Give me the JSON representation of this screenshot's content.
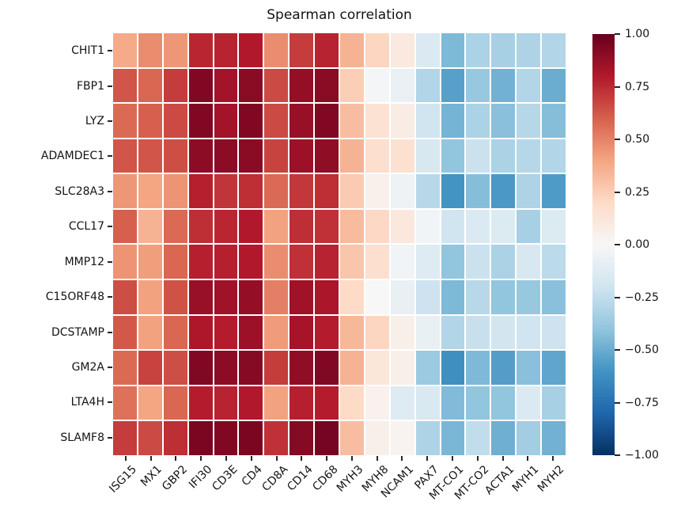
{
  "chart_data": {
    "type": "heatmap",
    "title": "Spearman correlation",
    "rows": [
      "CHIT1",
      "FBP1",
      "LYZ",
      "ADAMDEC1",
      "SLC28A3",
      "CCL17",
      "MMP12",
      "C15ORF48",
      "DCSTAMP",
      "GM2A",
      "LTA4H",
      "SLAMF8"
    ],
    "columns": [
      "ISG15",
      "MX1",
      "GBP2",
      "IFI30",
      "CD3E",
      "CD4",
      "CD8A",
      "CD14",
      "CD68",
      "MYH3",
      "MYH8",
      "NCAM1",
      "PAX7",
      "MT-CO1",
      "MT-CO2",
      "ACTA1",
      "MYH1",
      "MYH2"
    ],
    "values": [
      [
        0.38,
        0.47,
        0.44,
        0.76,
        0.77,
        0.8,
        0.47,
        0.7,
        0.77,
        0.35,
        0.22,
        0.1,
        -0.15,
        -0.45,
        -0.32,
        -0.33,
        -0.31,
        -0.3
      ],
      [
        0.63,
        0.58,
        0.7,
        0.93,
        0.84,
        0.91,
        0.66,
        0.88,
        0.91,
        0.25,
        -0.02,
        -0.07,
        -0.3,
        -0.55,
        -0.38,
        -0.48,
        -0.3,
        -0.5
      ],
      [
        0.57,
        0.6,
        0.66,
        0.93,
        0.84,
        0.93,
        0.66,
        0.87,
        0.93,
        0.31,
        0.15,
        0.08,
        -0.2,
        -0.47,
        -0.32,
        -0.42,
        -0.29,
        -0.43
      ],
      [
        0.63,
        0.63,
        0.65,
        0.9,
        0.9,
        0.91,
        0.68,
        0.86,
        0.89,
        0.35,
        0.17,
        0.16,
        -0.17,
        -0.4,
        -0.22,
        -0.32,
        -0.29,
        -0.3
      ],
      [
        0.44,
        0.4,
        0.45,
        0.78,
        0.72,
        0.74,
        0.57,
        0.71,
        0.74,
        0.26,
        0.05,
        -0.06,
        -0.28,
        -0.6,
        -0.43,
        -0.58,
        -0.31,
        -0.57
      ],
      [
        0.6,
        0.35,
        0.57,
        0.74,
        0.76,
        0.8,
        0.41,
        0.74,
        0.73,
        0.32,
        0.21,
        0.11,
        -0.03,
        -0.2,
        -0.15,
        -0.14,
        -0.33,
        -0.14
      ],
      [
        0.45,
        0.42,
        0.58,
        0.78,
        0.78,
        0.8,
        0.47,
        0.73,
        0.77,
        0.28,
        0.17,
        -0.03,
        -0.13,
        -0.4,
        -0.22,
        -0.32,
        -0.17,
        -0.27
      ],
      [
        0.65,
        0.41,
        0.64,
        0.87,
        0.85,
        0.88,
        0.51,
        0.85,
        0.82,
        0.2,
        0.0,
        -0.08,
        -0.21,
        -0.45,
        -0.28,
        -0.4,
        -0.38,
        -0.42
      ],
      [
        0.62,
        0.41,
        0.58,
        0.81,
        0.79,
        0.86,
        0.43,
        0.83,
        0.79,
        0.33,
        0.22,
        0.06,
        -0.08,
        -0.3,
        -0.23,
        -0.19,
        -0.2,
        -0.21
      ],
      [
        0.57,
        0.68,
        0.65,
        0.93,
        0.9,
        0.92,
        0.7,
        0.89,
        0.93,
        0.35,
        0.12,
        0.06,
        -0.37,
        -0.62,
        -0.45,
        -0.56,
        -0.42,
        -0.53
      ],
      [
        0.55,
        0.4,
        0.58,
        0.79,
        0.77,
        0.8,
        0.41,
        0.78,
        0.79,
        0.2,
        0.04,
        -0.13,
        -0.16,
        -0.44,
        -0.4,
        -0.4,
        -0.15,
        -0.33
      ],
      [
        0.7,
        0.66,
        0.74,
        0.95,
        0.93,
        0.95,
        0.73,
        0.92,
        0.96,
        0.31,
        0.06,
        0.03,
        -0.31,
        -0.46,
        -0.25,
        -0.49,
        -0.35,
        -0.48
      ]
    ],
    "vmin": -1,
    "vmax": 1,
    "grid_gap_color": "#ffffff",
    "colormap": {
      "name": "RdBu_r",
      "anchors": [
        {
          "v": 1.0,
          "color": "#67001f"
        },
        {
          "v": 0.8,
          "color": "#b2182b"
        },
        {
          "v": 0.6,
          "color": "#d6604d"
        },
        {
          "v": 0.4,
          "color": "#f4a582"
        },
        {
          "v": 0.2,
          "color": "#fddbc7"
        },
        {
          "v": 0.0,
          "color": "#f7f7f7"
        },
        {
          "v": -0.2,
          "color": "#d1e5f0"
        },
        {
          "v": -0.4,
          "color": "#92c5de"
        },
        {
          "v": -0.6,
          "color": "#4393c3"
        },
        {
          "v": -0.8,
          "color": "#2166ac"
        },
        {
          "v": -1.0,
          "color": "#053061"
        }
      ]
    },
    "colorbar": {
      "position": "right",
      "tick_values": [
        1.0,
        0.75,
        0.5,
        0.25,
        0.0,
        -0.25,
        -0.5,
        -0.75,
        -1.0
      ],
      "tick_labels": [
        "1.00",
        "0.75",
        "0.50",
        "0.25",
        "0.00",
        "−0.25",
        "−0.50",
        "−0.75",
        "−1.00"
      ]
    },
    "layout": {
      "legend": "none",
      "grid": "off",
      "x_tick_rotation_deg": 45
    }
  }
}
